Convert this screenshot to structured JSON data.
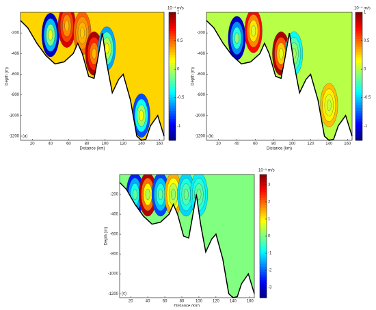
{
  "chart_data": [
    {
      "type": "contour",
      "label": "(a)",
      "xlabel": "Distance (km)",
      "ylabel": "Depth (m)",
      "colormap": "jet",
      "xlim": [
        7,
        165
      ],
      "ylim": [
        -1240,
        0
      ],
      "xticks": [
        20,
        40,
        60,
        80,
        100,
        120,
        140,
        160
      ],
      "yticks": [
        -200,
        -400,
        -600,
        -800,
        -1000,
        -1200
      ],
      "colorbar": {
        "unit": "10⁻⁴ m/s",
        "lim": [
          -1.25,
          1
        ],
        "ticks": [
          -1,
          -0.5,
          0,
          0.5,
          1
        ]
      },
      "background": 0.25,
      "bottom": {
        "x": [
          7,
          15,
          25,
          35,
          45,
          55,
          65,
          70,
          75,
          82,
          88,
          92,
          97,
          102,
          108,
          115,
          120,
          128,
          135,
          140,
          145,
          150,
          158,
          165
        ],
        "y": [
          -80,
          -150,
          -300,
          -420,
          -500,
          -480,
          -400,
          -300,
          -400,
          -620,
          -640,
          -450,
          -200,
          -500,
          -780,
          -650,
          -600,
          -850,
          -1200,
          -1240,
          -1230,
          -1100,
          -1000,
          -1200
        ]
      },
      "cores": [
        {
          "x": 40,
          "y": -220,
          "value": -1.1
        },
        {
          "x": 58,
          "y": -130,
          "value": 0.8
        },
        {
          "x": 75,
          "y": -200,
          "value": 0.5
        },
        {
          "x": 88,
          "y": -400,
          "value": 0.9
        },
        {
          "x": 102,
          "y": -350,
          "value": -0.6
        },
        {
          "x": 140,
          "y": -1000,
          "value": -0.8
        }
      ]
    },
    {
      "type": "contour",
      "label": "(b)",
      "xlabel": "Distance (km)",
      "ylabel": "Depth (m)",
      "colormap": "jet",
      "xlim": [
        7,
        165
      ],
      "ylim": [
        -1240,
        0
      ],
      "xticks": [
        20,
        40,
        60,
        80,
        100,
        120,
        140,
        160
      ],
      "yticks": [
        -200,
        -400,
        -600,
        -800,
        -1000,
        -1200
      ],
      "colorbar": {
        "unit": "10⁻⁴ m/s",
        "lim": [
          -1.25,
          1
        ],
        "ticks": [
          -1,
          -0.5,
          0,
          0.5,
          1
        ]
      },
      "background": 0,
      "bottom": {
        "x": [
          7,
          15,
          25,
          35,
          45,
          55,
          65,
          70,
          75,
          82,
          88,
          92,
          97,
          102,
          108,
          115,
          120,
          128,
          135,
          140,
          145,
          150,
          158,
          165
        ],
        "y": [
          -80,
          -150,
          -300,
          -420,
          -500,
          -480,
          -400,
          -300,
          -400,
          -620,
          -640,
          -450,
          -200,
          -500,
          -780,
          -650,
          -600,
          -850,
          -1200,
          -1240,
          -1230,
          -1100,
          -1000,
          -1200
        ]
      },
      "cores": [
        {
          "x": 40,
          "y": -250,
          "value": -1.1
        },
        {
          "x": 58,
          "y": -180,
          "value": 0.7
        },
        {
          "x": 88,
          "y": -400,
          "value": 0.9
        },
        {
          "x": 102,
          "y": -400,
          "value": -0.4
        },
        {
          "x": 140,
          "y": -900,
          "value": 0.3
        }
      ]
    },
    {
      "type": "contour",
      "label": "(c)",
      "xlabel": "Distance (km)",
      "ylabel": "Depth (m)",
      "colormap": "jet",
      "xlim": [
        7,
        165
      ],
      "ylim": [
        -1240,
        0
      ],
      "xticks": [
        20,
        40,
        60,
        80,
        100,
        120,
        140,
        160
      ],
      "yticks": [
        -200,
        -400,
        -600,
        -800,
        -1000,
        -1200
      ],
      "colorbar": {
        "unit": "10⁻⁵ m/s",
        "lim": [
          -3.6,
          3.6
        ],
        "ticks": [
          -3,
          -2,
          -1,
          0,
          1,
          2,
          3
        ]
      },
      "background": 0,
      "bottom": {
        "x": [
          7,
          15,
          25,
          35,
          45,
          55,
          65,
          70,
          75,
          82,
          88,
          92,
          97,
          102,
          108,
          115,
          120,
          128,
          135,
          140,
          145,
          150,
          158,
          165
        ],
        "y": [
          -80,
          -150,
          -300,
          -420,
          -500,
          -480,
          -400,
          -300,
          -400,
          -620,
          -640,
          -450,
          -200,
          -500,
          -780,
          -650,
          -600,
          -850,
          -1200,
          -1240,
          -1230,
          -1100,
          -1000,
          -1200
        ]
      },
      "cores": [
        {
          "x": 25,
          "y": -200,
          "value": -2.5
        },
        {
          "x": 40,
          "y": -200,
          "value": 3.2
        },
        {
          "x": 55,
          "y": -200,
          "value": -2.2
        },
        {
          "x": 70,
          "y": -200,
          "value": 1.5
        },
        {
          "x": 85,
          "y": -200,
          "value": -1.2
        },
        {
          "x": 100,
          "y": -200,
          "value": -1
        }
      ]
    }
  ]
}
